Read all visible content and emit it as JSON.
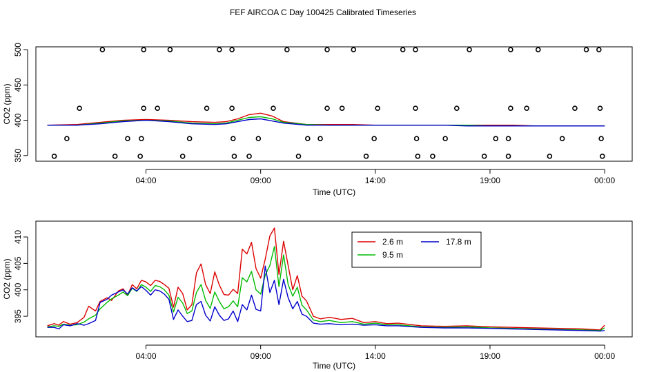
{
  "page_title": "FEF AIRCOA C  Day 100425  Calibrated Timeseries",
  "chart_data": [
    {
      "type": "scatter+line",
      "title": "FEF AIRCOA C  Day 100425  Calibrated Timeseries",
      "xlabel": "Time (UTC)",
      "ylabel": "CO2 (ppm)",
      "xlim": [
        -1.8,
        24.2
      ],
      "ylim": [
        342,
        504
      ],
      "x_ticks": [
        3,
        8,
        13,
        18,
        23
      ],
      "x_tick_labels": [
        "04:00",
        "09:00",
        "14:00",
        "19:00",
        "00:00"
      ],
      "y_ticks": [
        350,
        400,
        450,
        500
      ],
      "y_tick_labels": [
        "350",
        "400",
        "450",
        "500"
      ],
      "reference_points": [
        {
          "x": 1.1,
          "y": 500
        },
        {
          "x": 2.9,
          "y": 500
        },
        {
          "x": 4.05,
          "y": 500
        },
        {
          "x": 6.2,
          "y": 500
        },
        {
          "x": 6.75,
          "y": 500
        },
        {
          "x": 9.15,
          "y": 500
        },
        {
          "x": 10.9,
          "y": 500
        },
        {
          "x": 12.05,
          "y": 500
        },
        {
          "x": 14.2,
          "y": 500
        },
        {
          "x": 14.75,
          "y": 500
        },
        {
          "x": 17.1,
          "y": 500
        },
        {
          "x": 18.9,
          "y": 500
        },
        {
          "x": 20.1,
          "y": 500
        },
        {
          "x": 22.2,
          "y": 500
        },
        {
          "x": 22.75,
          "y": 500
        },
        {
          "x": 0.1,
          "y": 417
        },
        {
          "x": 2.9,
          "y": 417
        },
        {
          "x": 3.5,
          "y": 417
        },
        {
          "x": 5.65,
          "y": 417
        },
        {
          "x": 6.75,
          "y": 417
        },
        {
          "x": 8.55,
          "y": 417
        },
        {
          "x": 10.9,
          "y": 417
        },
        {
          "x": 11.55,
          "y": 417
        },
        {
          "x": 13.1,
          "y": 417
        },
        {
          "x": 14.75,
          "y": 417
        },
        {
          "x": 16.55,
          "y": 417
        },
        {
          "x": 18.9,
          "y": 417
        },
        {
          "x": 19.6,
          "y": 417
        },
        {
          "x": 21.7,
          "y": 417
        },
        {
          "x": 22.8,
          "y": 417
        },
        {
          "x": -0.45,
          "y": 374
        },
        {
          "x": 2.2,
          "y": 374
        },
        {
          "x": 2.8,
          "y": 374
        },
        {
          "x": 4.9,
          "y": 374
        },
        {
          "x": 6.8,
          "y": 374
        },
        {
          "x": 7.9,
          "y": 374
        },
        {
          "x": 10.05,
          "y": 374
        },
        {
          "x": 10.6,
          "y": 374
        },
        {
          "x": 12.95,
          "y": 374
        },
        {
          "x": 14.8,
          "y": 374
        },
        {
          "x": 16.05,
          "y": 374
        },
        {
          "x": 18.25,
          "y": 374
        },
        {
          "x": 18.8,
          "y": 374
        },
        {
          "x": 21.15,
          "y": 374
        },
        {
          "x": 22.85,
          "y": 374
        },
        {
          "x": -1.0,
          "y": 349
        },
        {
          "x": 1.65,
          "y": 349
        },
        {
          "x": 2.75,
          "y": 349
        },
        {
          "x": 4.6,
          "y": 349
        },
        {
          "x": 6.85,
          "y": 349
        },
        {
          "x": 7.5,
          "y": 349
        },
        {
          "x": 9.65,
          "y": 349
        },
        {
          "x": 12.6,
          "y": 349
        },
        {
          "x": 14.85,
          "y": 349
        },
        {
          "x": 15.5,
          "y": 349
        },
        {
          "x": 17.75,
          "y": 349
        },
        {
          "x": 18.8,
          "y": 349
        },
        {
          "x": 20.6,
          "y": 349
        },
        {
          "x": 22.9,
          "y": 349
        }
      ],
      "series": [
        {
          "name": "2.6 m",
          "color": "#dd0000",
          "x": [
            -1.3,
            0,
            1,
            2,
            3,
            4,
            5,
            6,
            6.5,
            7,
            7.5,
            8,
            8.5,
            9,
            10,
            11,
            12,
            13,
            14,
            15,
            16,
            17,
            18,
            19,
            20,
            21,
            22,
            23
          ],
          "values": [
            393,
            394,
            397,
            400,
            401,
            400,
            398,
            397,
            398,
            402,
            408,
            410,
            406,
            398,
            394,
            394,
            394,
            393,
            393,
            393,
            393,
            393,
            393,
            393,
            392,
            392,
            392,
            392
          ]
        },
        {
          "name": "9.5 m",
          "color": "#00bb00",
          "x": [
            -1.3,
            0,
            1,
            2,
            3,
            4,
            5,
            6,
            6.5,
            7,
            7.5,
            8,
            8.5,
            9,
            10,
            11,
            12,
            13,
            14,
            15,
            16,
            17,
            18,
            19,
            20,
            21,
            22,
            23
          ],
          "values": [
            393,
            393,
            396,
            399,
            400,
            399,
            396,
            395,
            396,
            400,
            404,
            405,
            402,
            397,
            394,
            393,
            393,
            393,
            393,
            393,
            393,
            393,
            392,
            392,
            392,
            392,
            392,
            392
          ]
        },
        {
          "name": "17.8 m",
          "color": "#0000cc",
          "x": [
            -1.3,
            0,
            1,
            2,
            3,
            4,
            5,
            6,
            6.5,
            7,
            7.5,
            8,
            8.5,
            9,
            10,
            11,
            12,
            13,
            14,
            15,
            16,
            17,
            18,
            19,
            20,
            21,
            22,
            23
          ],
          "values": [
            393,
            393,
            395,
            398,
            400,
            398,
            395,
            394,
            395,
            398,
            401,
            402,
            399,
            396,
            393,
            393,
            393,
            393,
            393,
            393,
            393,
            392,
            392,
            392,
            392,
            392,
            392,
            392
          ]
        }
      ]
    },
    {
      "type": "line",
      "title": "",
      "xlabel": "Time (UTC)",
      "ylabel": "CO2 (ppm)",
      "xlim": [
        -1.8,
        24.2
      ],
      "ylim": [
        391.1,
        413
      ],
      "x_ticks": [
        3,
        8,
        13,
        18,
        23
      ],
      "x_tick_labels": [
        "04:00",
        "09:00",
        "14:00",
        "19:00",
        "00:00"
      ],
      "y_ticks": [
        395,
        400,
        405,
        410
      ],
      "y_tick_labels": [
        "395",
        "400",
        "405",
        "410"
      ],
      "legend": {
        "position": "top-center"
      },
      "series": [
        {
          "name": "2.6 m",
          "color": "#dd0000",
          "x": [
            -1.3,
            -1.0,
            -0.8,
            -0.6,
            -0.3,
            0.0,
            0.3,
            0.5,
            0.8,
            1.0,
            1.3,
            1.5,
            1.8,
            2.0,
            2.2,
            2.4,
            2.6,
            2.8,
            3.0,
            3.2,
            3.4,
            3.6,
            3.8,
            4.0,
            4.2,
            4.4,
            4.6,
            4.8,
            5.0,
            5.2,
            5.4,
            5.6,
            5.8,
            6.0,
            6.2,
            6.4,
            6.6,
            6.8,
            7.0,
            7.2,
            7.4,
            7.6,
            7.8,
            8.0,
            8.2,
            8.4,
            8.6,
            8.8,
            9.0,
            9.2,
            9.4,
            9.6,
            9.8,
            10.0,
            10.3,
            10.6,
            11.0,
            11.5,
            12.0,
            12.5,
            13.0,
            13.5,
            14.0,
            15.0,
            16.0,
            17.0,
            18.0,
            19.0,
            20.0,
            21.0,
            22.0,
            22.8,
            23.0
          ],
          "values": [
            393.2,
            393.6,
            393.3,
            394.0,
            393.5,
            393.8,
            394.8,
            396.9,
            396.0,
            397.8,
            398.5,
            398.0,
            399.8,
            400.2,
            399.0,
            401.0,
            400.2,
            401.8,
            401.5,
            400.8,
            401.8,
            401.6,
            401.0,
            400.3,
            396.7,
            400.5,
            399.3,
            396.2,
            397.2,
            403.2,
            404.9,
            401.0,
            399.3,
            403.4,
            400.9,
            399.1,
            399.0,
            400.1,
            399.3,
            407.7,
            406.8,
            409.0,
            404.0,
            402.2,
            405.8,
            410.2,
            411.7,
            402.9,
            409.2,
            404.6,
            400.0,
            402.7,
            398.8,
            397.9,
            395.0,
            394.5,
            394.8,
            394.4,
            394.6,
            393.8,
            394.0,
            393.6,
            393.7,
            393.2,
            393.1,
            393.2,
            393.0,
            392.9,
            392.8,
            392.7,
            392.6,
            392.4,
            393.3
          ]
        },
        {
          "name": "9.5 m",
          "color": "#00bb00",
          "x": [
            -1.3,
            -1.0,
            -0.8,
            -0.6,
            -0.3,
            0.0,
            0.3,
            0.5,
            0.8,
            1.0,
            1.3,
            1.5,
            1.8,
            2.0,
            2.2,
            2.4,
            2.6,
            2.8,
            3.0,
            3.2,
            3.4,
            3.6,
            3.8,
            4.0,
            4.2,
            4.4,
            4.6,
            4.8,
            5.0,
            5.2,
            5.4,
            5.6,
            5.8,
            6.0,
            6.2,
            6.4,
            6.6,
            6.8,
            7.0,
            7.2,
            7.4,
            7.6,
            7.8,
            8.0,
            8.2,
            8.4,
            8.6,
            8.8,
            9.0,
            9.2,
            9.4,
            9.6,
            9.8,
            10.0,
            10.3,
            10.6,
            11.0,
            11.5,
            12.0,
            12.5,
            13.0,
            13.5,
            14.0,
            15.0,
            16.0,
            17.0,
            18.0,
            19.0,
            20.0,
            21.0,
            22.0,
            22.8,
            23.0
          ],
          "values": [
            393.0,
            393.2,
            393.1,
            393.5,
            393.3,
            393.4,
            393.9,
            394.5,
            395.2,
            396.4,
            397.6,
            398.3,
            399.0,
            399.6,
            398.9,
            400.3,
            399.7,
            401.0,
            400.5,
            399.7,
            400.8,
            400.6,
            400.0,
            399.0,
            395.8,
            398.6,
            397.5,
            395.5,
            396.0,
            399.5,
            401.0,
            398.0,
            396.5,
            399.6,
            397.8,
            396.4,
            396.8,
            397.9,
            396.8,
            402.3,
            401.5,
            403.5,
            400.0,
            399.2,
            402.8,
            404.6,
            408.2,
            400.6,
            406.6,
            401.0,
            398.8,
            400.5,
            397.1,
            396.2,
            394.3,
            394.0,
            394.2,
            393.8,
            394.0,
            393.5,
            393.7,
            393.4,
            393.4,
            393.0,
            392.9,
            393.0,
            392.8,
            392.7,
            392.6,
            392.5,
            392.4,
            392.3,
            392.8
          ]
        },
        {
          "name": "17.8 m",
          "color": "#0000cc",
          "x": [
            -1.3,
            -1.0,
            -0.8,
            -0.6,
            -0.3,
            0.0,
            0.3,
            0.5,
            0.8,
            1.0,
            1.3,
            1.5,
            1.8,
            2.0,
            2.2,
            2.4,
            2.6,
            2.8,
            3.0,
            3.2,
            3.4,
            3.6,
            3.8,
            4.0,
            4.2,
            4.4,
            4.6,
            4.8,
            5.0,
            5.2,
            5.4,
            5.6,
            5.8,
            6.0,
            6.2,
            6.4,
            6.6,
            6.8,
            7.0,
            7.2,
            7.4,
            7.6,
            7.8,
            8.0,
            8.2,
            8.4,
            8.6,
            8.8,
            9.0,
            9.2,
            9.4,
            9.6,
            9.8,
            10.0,
            10.3,
            10.6,
            11.0,
            11.5,
            12.0,
            12.5,
            13.0,
            13.5,
            14.0,
            15.0,
            16.0,
            17.0,
            18.0,
            19.0,
            20.0,
            21.0,
            22.0,
            22.8,
            23.0
          ],
          "values": [
            392.9,
            392.9,
            392.6,
            393.4,
            393.2,
            393.6,
            393.3,
            393.6,
            394.2,
            397.6,
            398.2,
            399.0,
            399.6,
            400.0,
            399.2,
            400.4,
            399.8,
            400.6,
            399.9,
            399.0,
            400.0,
            399.8,
            399.2,
            398.2,
            394.4,
            396.2,
            395.0,
            394.0,
            394.2,
            397.2,
            397.8,
            395.2,
            394.1,
            396.8,
            395.2,
            394.2,
            394.5,
            396.0,
            394.0,
            397.2,
            396.2,
            399.0,
            396.3,
            396.0,
            404.5,
            399.5,
            401.8,
            397.2,
            402.0,
            398.5,
            396.4,
            397.8,
            395.4,
            395.0,
            393.7,
            393.5,
            393.6,
            393.4,
            393.5,
            393.3,
            393.4,
            393.2,
            393.2,
            392.9,
            392.8,
            392.8,
            392.7,
            392.6,
            392.5,
            392.4,
            392.3,
            392.2,
            392.3
          ]
        }
      ]
    }
  ]
}
